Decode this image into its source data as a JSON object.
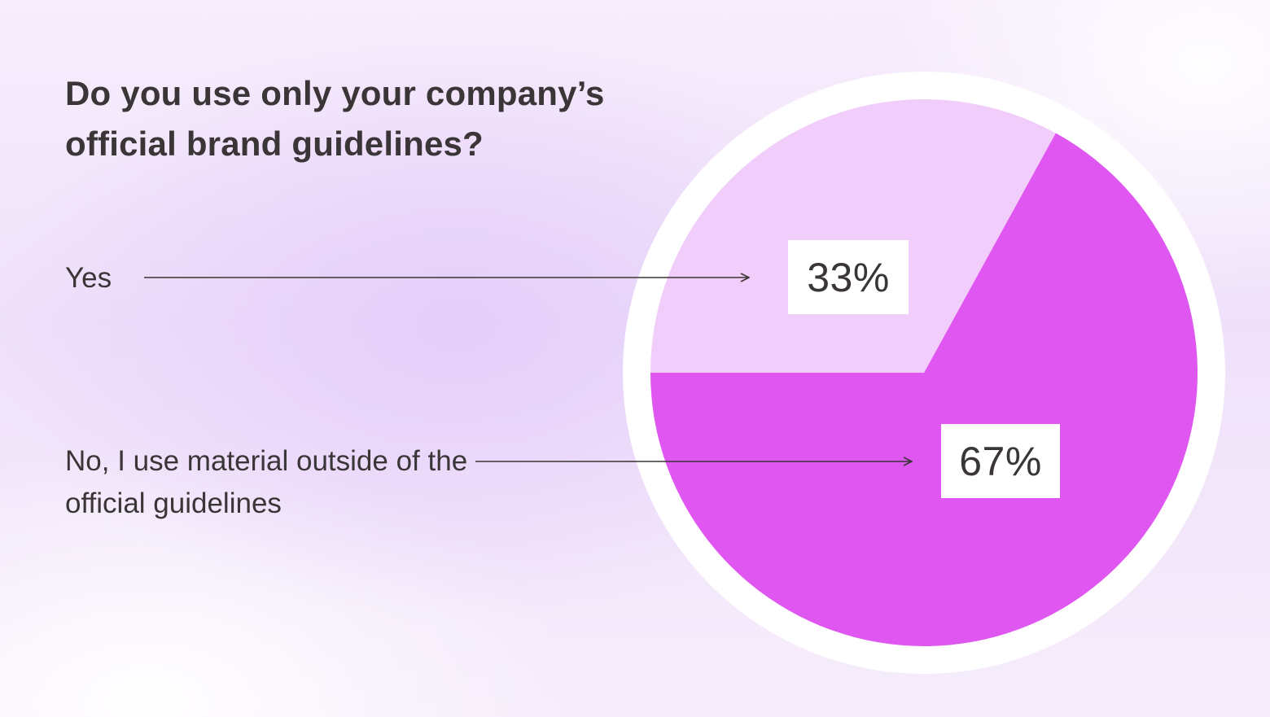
{
  "chart_data": {
    "type": "pie",
    "title": "Do you use only your company’s official brand guidelines?",
    "slices": [
      {
        "label": "Yes",
        "value": 33,
        "value_label": "33%",
        "color": "#f1cdfb"
      },
      {
        "label": "No, I use material outside of the official guidelines",
        "value": 67,
        "value_label": "67%",
        "color": "#df57f0"
      }
    ],
    "legend_placement": "left, with arrows pointing to slices",
    "ring_color": "#ffffff",
    "arrow_color": "#3a3536",
    "text_color": "#3a3536"
  }
}
